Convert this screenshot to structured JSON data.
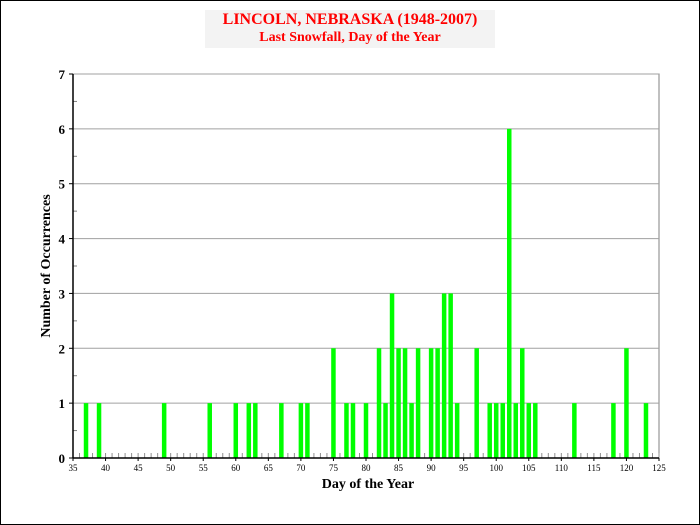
{
  "chart_data": {
    "type": "bar",
    "title": "LINCOLN, NEBRASKA (1948-2007)",
    "subtitle": "Last Snowfall, Day of the Year",
    "xlabel": "Day of the Year",
    "ylabel": "Number of Occurrences",
    "xlim": [
      35,
      125
    ],
    "ylim": [
      0,
      7
    ],
    "x_ticks": [
      35,
      40,
      45,
      50,
      55,
      60,
      65,
      70,
      75,
      80,
      85,
      90,
      95,
      100,
      105,
      110,
      115,
      120,
      125
    ],
    "y_ticks": [
      0,
      1,
      2,
      3,
      4,
      5,
      6,
      7
    ],
    "grid": "horizontal",
    "bar_color": "#00ff00",
    "x": [
      37,
      39,
      49,
      56,
      60,
      62,
      63,
      67,
      70,
      71,
      75,
      77,
      78,
      80,
      82,
      83,
      84,
      85,
      86,
      87,
      88,
      90,
      91,
      92,
      93,
      94,
      97,
      99,
      100,
      101,
      102,
      103,
      104,
      105,
      106,
      112,
      118,
      120,
      123
    ],
    "values": [
      1,
      1,
      1,
      1,
      1,
      1,
      1,
      1,
      1,
      1,
      2,
      1,
      1,
      1,
      2,
      1,
      3,
      2,
      2,
      1,
      2,
      2,
      2,
      3,
      3,
      1,
      2,
      1,
      1,
      1,
      6,
      1,
      2,
      1,
      1,
      1,
      1,
      2,
      1
    ]
  }
}
